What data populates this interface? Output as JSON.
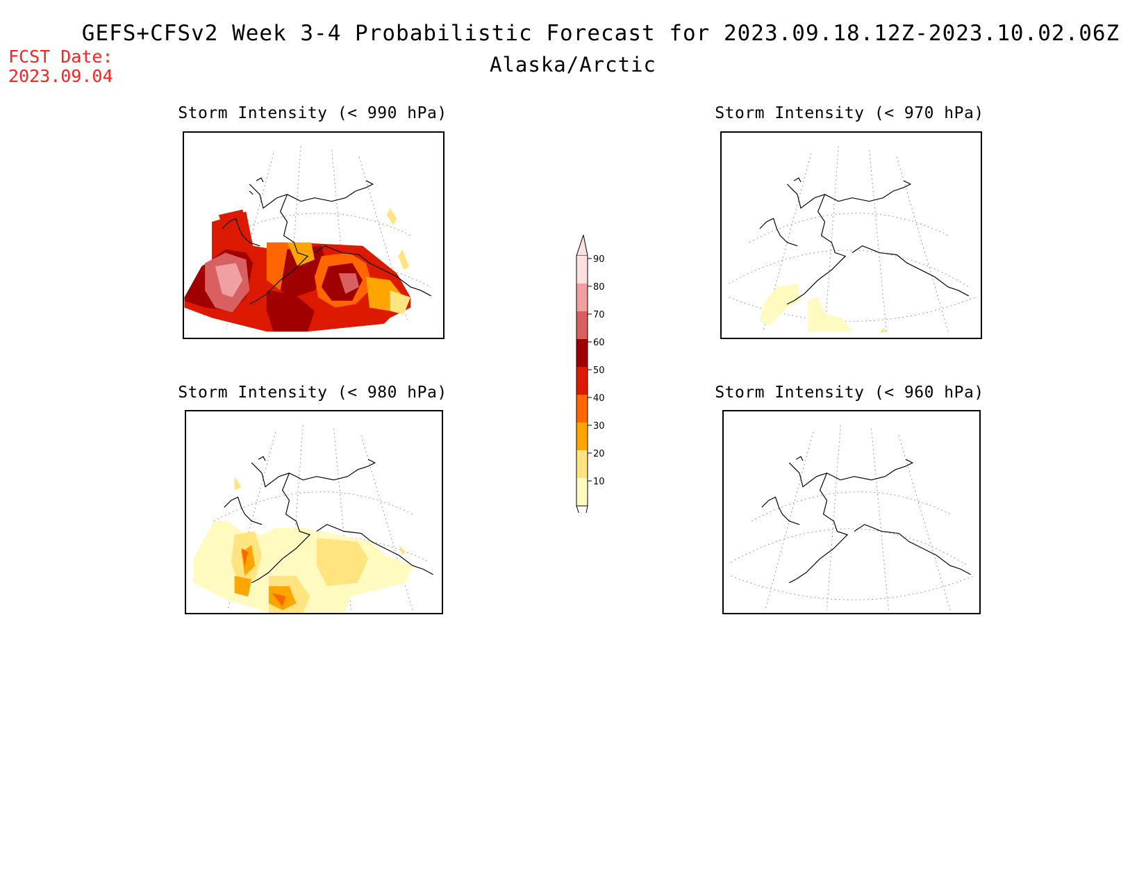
{
  "header": {
    "title": "GEFS+CFSv2 Week 3-4 Probabilistic Forecast for 2023.09.18.12Z-2023.10.02.06Z",
    "subtitle": "Alaska/Arctic",
    "fcst_label": "FCST Date:",
    "fcst_date": "2023.09.04"
  },
  "panels": [
    {
      "title": "Storm Intensity (< 990 hPa)"
    },
    {
      "title": "Storm Intensity (< 970 hPa)"
    },
    {
      "title": "Storm Intensity (< 980 hPa)"
    },
    {
      "title": "Storm Intensity (< 960 hPa)"
    }
  ],
  "colorbar": {
    "levels": [
      "90",
      "80",
      "70",
      "60",
      "50",
      "40",
      "30",
      "20",
      "10"
    ],
    "colors": [
      "#fde0e0",
      "#f0a0a0",
      "#d86060",
      "#a00000",
      "#dd1a00",
      "#ff6600",
      "#ffa500",
      "#ffe480",
      "#fffac0"
    ]
  }
}
